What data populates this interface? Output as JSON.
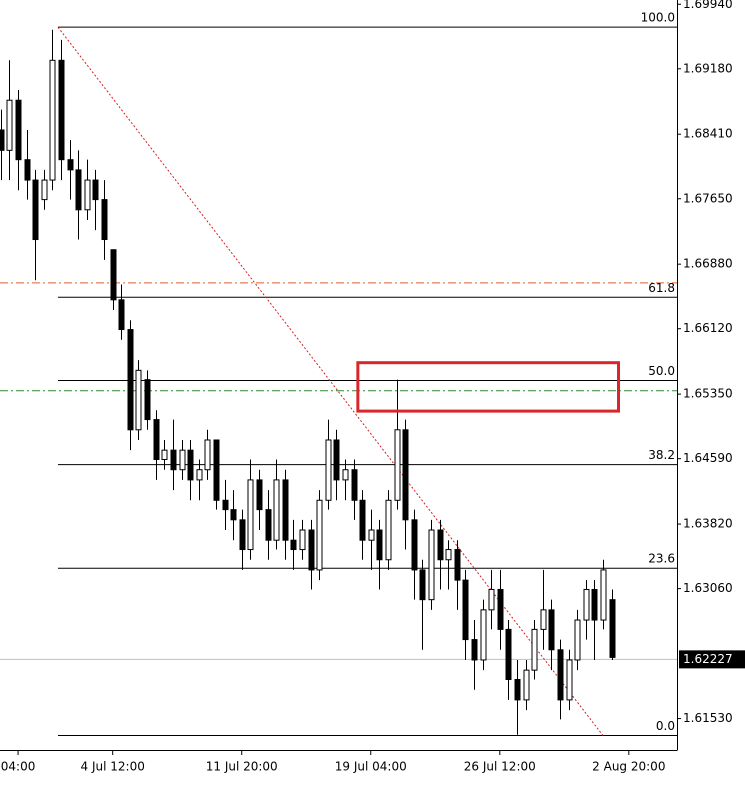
{
  "chart_data": {
    "type": "candlestick",
    "ylim": [
      1.6116,
      1.6999
    ],
    "xlim": [
      -0.1,
      78.6
    ],
    "yticks": [
      {
        "value": 1.6994,
        "label": "1.69940"
      },
      {
        "value": 1.6918,
        "label": "1.69180"
      },
      {
        "value": 1.6841,
        "label": "1.68410"
      },
      {
        "value": 1.6765,
        "label": "1.67650"
      },
      {
        "value": 1.6688,
        "label": "1.66880"
      },
      {
        "value": 1.6612,
        "label": "1.66120"
      },
      {
        "value": 1.6535,
        "label": "1.65350"
      },
      {
        "value": 1.6459,
        "label": "1.64590"
      },
      {
        "value": 1.6382,
        "label": "1.63820"
      },
      {
        "value": 1.6306,
        "label": "1.63060"
      },
      {
        "value": 1.6153,
        "label": "1.61530"
      }
    ],
    "xticks": [
      {
        "value": 2,
        "label": "04:00"
      },
      {
        "value": 13,
        "label": "4 Jul 12:00"
      },
      {
        "value": 28,
        "label": "11 Jul 20:00"
      },
      {
        "value": 43,
        "label": "19 Jul 04:00"
      },
      {
        "value": 58,
        "label": "26 Jul 12:00"
      },
      {
        "value": 73,
        "label": "2 Aug 20:00"
      }
    ],
    "up_color": "#ffffff",
    "down_color": "#000000",
    "wick_color": "#000000",
    "ohlc": [
      [
        1.6846,
        1.687,
        1.6787,
        1.6822
      ],
      [
        1.6822,
        1.6928,
        1.6787,
        1.6881
      ],
      [
        1.6881,
        1.6893,
        1.6775,
        1.6811
      ],
      [
        1.6811,
        1.6846,
        1.6764,
        1.6787
      ],
      [
        1.6787,
        1.6799,
        1.6669,
        1.6717
      ],
      [
        1.6764,
        1.6799,
        1.6752,
        1.6787
      ],
      [
        1.6787,
        1.6964,
        1.6775,
        1.6928
      ],
      [
        1.6928,
        1.6952,
        1.6787,
        1.6811
      ],
      [
        1.6811,
        1.6834,
        1.6764,
        1.6799
      ],
      [
        1.6799,
        1.6822,
        1.6717,
        1.6752
      ],
      [
        1.6752,
        1.6811,
        1.674,
        1.6787
      ],
      [
        1.6787,
        1.6799,
        1.6728,
        1.6764
      ],
      [
        1.6764,
        1.6787,
        1.6693,
        1.6717
      ],
      [
        1.6705,
        1.6705,
        1.6634,
        1.6646
      ],
      [
        1.6646,
        1.6664,
        1.6599,
        1.6611
      ],
      [
        1.6611,
        1.6622,
        1.6469,
        1.6493
      ],
      [
        1.6493,
        1.6575,
        1.6481,
        1.6563
      ],
      [
        1.6552,
        1.6563,
        1.6493,
        1.6505
      ],
      [
        1.6505,
        1.6516,
        1.6434,
        1.6458
      ],
      [
        1.6458,
        1.6481,
        1.6446,
        1.6469
      ],
      [
        1.6469,
        1.6505,
        1.6422,
        1.6446
      ],
      [
        1.6446,
        1.6481,
        1.6434,
        1.6469
      ],
      [
        1.6469,
        1.6481,
        1.641,
        1.6434
      ],
      [
        1.6434,
        1.6458,
        1.641,
        1.6446
      ],
      [
        1.6446,
        1.6493,
        1.6434,
        1.6481
      ],
      [
        1.6481,
        1.6481,
        1.6399,
        1.641
      ],
      [
        1.641,
        1.6434,
        1.6375,
        1.6399
      ],
      [
        1.6399,
        1.6422,
        1.6363,
        1.6387
      ],
      [
        1.6387,
        1.6399,
        1.6328,
        1.6352
      ],
      [
        1.6352,
        1.6458,
        1.634,
        1.6434
      ],
      [
        1.6434,
        1.6446,
        1.6375,
        1.6399
      ],
      [
        1.6399,
        1.6422,
        1.634,
        1.6363
      ],
      [
        1.6363,
        1.6458,
        1.6352,
        1.6434
      ],
      [
        1.6434,
        1.6446,
        1.634,
        1.6363
      ],
      [
        1.6363,
        1.6387,
        1.6328,
        1.6352
      ],
      [
        1.6352,
        1.6387,
        1.634,
        1.6375
      ],
      [
        1.6375,
        1.6387,
        1.6305,
        1.6328
      ],
      [
        1.6328,
        1.6422,
        1.6316,
        1.641
      ],
      [
        1.641,
        1.6505,
        1.6399,
        1.6481
      ],
      [
        1.6481,
        1.6493,
        1.641,
        1.6434
      ],
      [
        1.6434,
        1.6458,
        1.641,
        1.6446
      ],
      [
        1.6446,
        1.6458,
        1.6387,
        1.641
      ],
      [
        1.641,
        1.6422,
        1.634,
        1.6363
      ],
      [
        1.6363,
        1.6399,
        1.6328,
        1.6375
      ],
      [
        1.6375,
        1.6387,
        1.6305,
        1.634
      ],
      [
        1.634,
        1.6422,
        1.6328,
        1.641
      ],
      [
        1.641,
        1.6552,
        1.6399,
        1.6493
      ],
      [
        1.6493,
        1.6505,
        1.6352,
        1.6387
      ],
      [
        1.6387,
        1.6399,
        1.6293,
        1.6328
      ],
      [
        1.6328,
        1.634,
        1.6234,
        1.6293
      ],
      [
        1.6293,
        1.6387,
        1.6281,
        1.6375
      ],
      [
        1.6375,
        1.6387,
        1.6305,
        1.634
      ],
      [
        1.634,
        1.6363,
        1.6305,
        1.6352
      ],
      [
        1.6352,
        1.6363,
        1.6281,
        1.6316
      ],
      [
        1.6316,
        1.6328,
        1.6222,
        1.6246
      ],
      [
        1.6246,
        1.6269,
        1.6187,
        1.6222
      ],
      [
        1.6222,
        1.6293,
        1.621,
        1.6281
      ],
      [
        1.6281,
        1.6328,
        1.6258,
        1.6305
      ],
      [
        1.6305,
        1.6328,
        1.6234,
        1.6258
      ],
      [
        1.6258,
        1.6269,
        1.6175,
        1.6199
      ],
      [
        1.6199,
        1.6222,
        1.6134,
        1.6175
      ],
      [
        1.6175,
        1.6222,
        1.6163,
        1.621
      ],
      [
        1.621,
        1.6269,
        1.6199,
        1.6258
      ],
      [
        1.6258,
        1.6328,
        1.6234,
        1.6281
      ],
      [
        1.6281,
        1.6293,
        1.621,
        1.6234
      ],
      [
        1.6234,
        1.6246,
        1.6152,
        1.6175
      ],
      [
        1.6175,
        1.6234,
        1.6163,
        1.6222
      ],
      [
        1.6222,
        1.6281,
        1.621,
        1.6269
      ],
      [
        1.6269,
        1.6316,
        1.6246,
        1.6305
      ],
      [
        1.6305,
        1.6316,
        1.6222,
        1.6269
      ],
      [
        1.6269,
        1.634,
        1.6258,
        1.6328
      ],
      [
        1.6293,
        1.6305,
        1.6222,
        1.6225
      ]
    ],
    "last_price": 1.62227,
    "last_price_line_color": "#c0c0c0",
    "fibonacci": {
      "start": 6.64,
      "color": "#000000",
      "levels": [
        {
          "label": "100.0",
          "price": 1.6967
        },
        {
          "label": "61.8",
          "price": 1.6649
        },
        {
          "label": "50.0",
          "price": 1.6551
        },
        {
          "label": "38.2",
          "price": 1.6452
        },
        {
          "label": "23.6",
          "price": 1.633
        },
        {
          "label": "0.0",
          "price": 1.6133
        }
      ]
    },
    "trendline": {
      "start": [
        6.64,
        1.6967
      ],
      "end": [
        70,
        1.6133
      ],
      "color": "#d62020"
    },
    "horizontal_lines": [
      {
        "price": 1.6666,
        "color": "#e0602a"
      },
      {
        "price": 1.6539,
        "color": "#2e8b2e"
      }
    ],
    "rectangle": {
      "x": [
        41.5,
        71.8
      ],
      "price": [
        1.6572,
        1.6515
      ],
      "color": "#d9262c"
    }
  }
}
